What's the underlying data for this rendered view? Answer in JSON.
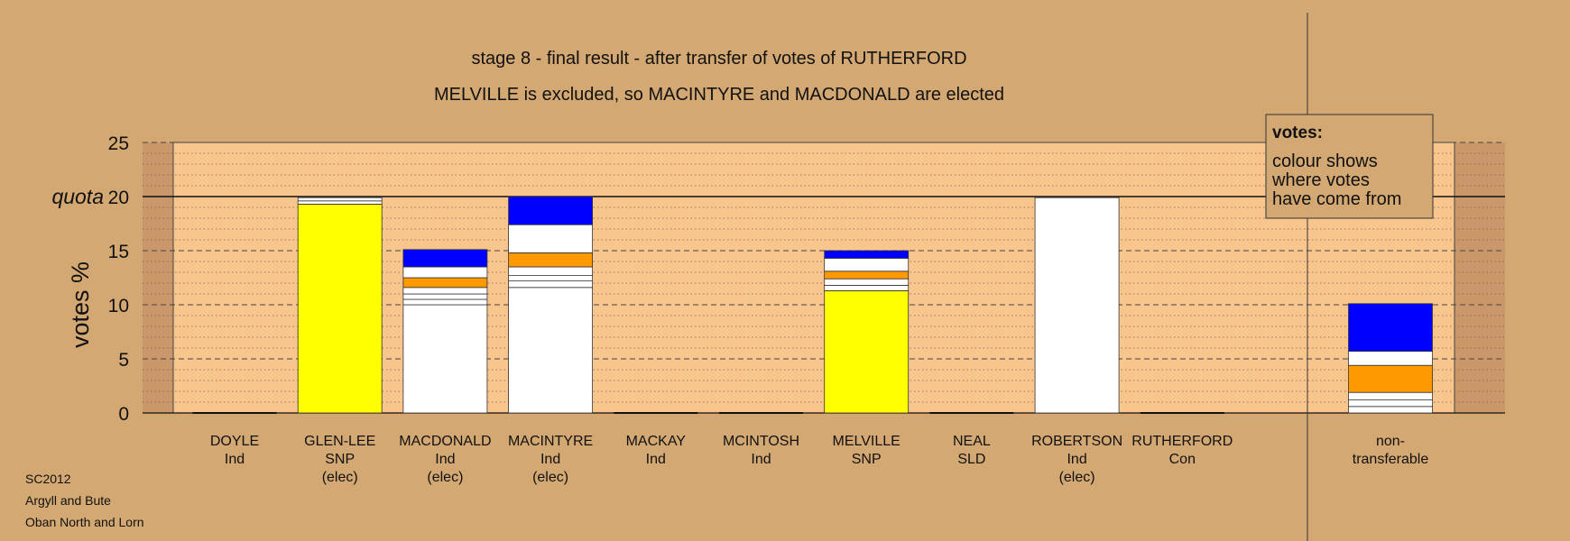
{
  "chart_data": {
    "type": "bar",
    "stacked": true,
    "title": "stage 8 - final result - after transfer of votes of RUTHERFORD",
    "subtitle": "MELVILLE is excluded, so MACINTYRE and MACDONALD are elected",
    "ylabel": "votes %",
    "quota_label": "quota",
    "quota": 20,
    "ylim": [
      0,
      25
    ],
    "yticks": [
      0,
      5,
      10,
      15,
      20,
      25
    ],
    "grid": true,
    "candidates": [
      {
        "name": "DOYLE",
        "party": "Ind",
        "status": "",
        "segments": []
      },
      {
        "name": "GLEN-LEE",
        "party": "SNP",
        "status": "(elec)",
        "segments": [
          {
            "value": 19.3,
            "color": "#ffff00"
          },
          {
            "value": 0.3,
            "color": "#ffffff"
          },
          {
            "value": 0.3,
            "color": "#ffffff"
          }
        ]
      },
      {
        "name": "MACDONALD",
        "party": "Ind",
        "status": "(elec)",
        "segments": [
          {
            "value": 10.0,
            "color": "#ffffff"
          },
          {
            "value": 0.5,
            "color": "#ffffff"
          },
          {
            "value": 0.5,
            "color": "#ffffff"
          },
          {
            "value": 0.6,
            "color": "#ffffff"
          },
          {
            "value": 0.9,
            "color": "#ff9900"
          },
          {
            "value": 1.0,
            "color": "#ffffff"
          },
          {
            "value": 1.6,
            "color": "#0000ff"
          }
        ]
      },
      {
        "name": "MACINTYRE",
        "party": "Ind",
        "status": "(elec)",
        "segments": [
          {
            "value": 11.6,
            "color": "#ffffff"
          },
          {
            "value": 0.6,
            "color": "#ffffff"
          },
          {
            "value": 0.5,
            "color": "#ffffff"
          },
          {
            "value": 0.8,
            "color": "#ffffff"
          },
          {
            "value": 1.3,
            "color": "#ff9900"
          },
          {
            "value": 2.6,
            "color": "#ffffff"
          },
          {
            "value": 2.6,
            "color": "#0000ff"
          }
        ]
      },
      {
        "name": "MACKAY",
        "party": "Ind",
        "status": "",
        "segments": []
      },
      {
        "name": "MCINTOSH",
        "party": "Ind",
        "status": "",
        "segments": []
      },
      {
        "name": "MELVILLE",
        "party": "SNP",
        "status": "",
        "segments": [
          {
            "value": 11.3,
            "color": "#ffff00"
          },
          {
            "value": 0.5,
            "color": "#ffffff"
          },
          {
            "value": 0.6,
            "color": "#ffffff"
          },
          {
            "value": 0.7,
            "color": "#ff9900"
          },
          {
            "value": 1.2,
            "color": "#ffffff"
          },
          {
            "value": 0.7,
            "color": "#0000ff"
          }
        ]
      },
      {
        "name": "NEAL",
        "party": "SLD",
        "status": "",
        "segments": []
      },
      {
        "name": "ROBERTSON",
        "party": "Ind",
        "status": "(elec)",
        "segments": [
          {
            "value": 19.9,
            "color": "#ffffff"
          }
        ]
      },
      {
        "name": "RUTHERFORD",
        "party": "Con",
        "status": "",
        "segments": []
      }
    ],
    "nontransferable": {
      "label": [
        "non-",
        "transferable"
      ],
      "segments": [
        {
          "value": 0.6,
          "color": "#ffffff"
        },
        {
          "value": 0.6,
          "color": "#ffffff"
        },
        {
          "value": 0.7,
          "color": "#ffffff"
        },
        {
          "value": 2.5,
          "color": "#ff9900"
        },
        {
          "value": 1.3,
          "color": "#ffffff"
        },
        {
          "value": 4.4,
          "color": "#0000ff"
        }
      ]
    },
    "legend": {
      "title": "votes:",
      "lines": [
        "colour shows",
        "where votes",
        "have come from"
      ],
      "placement": "top-right"
    },
    "footer": [
      "SC2012",
      "Argyll and Bute",
      "Oban North and Lorn"
    ]
  }
}
